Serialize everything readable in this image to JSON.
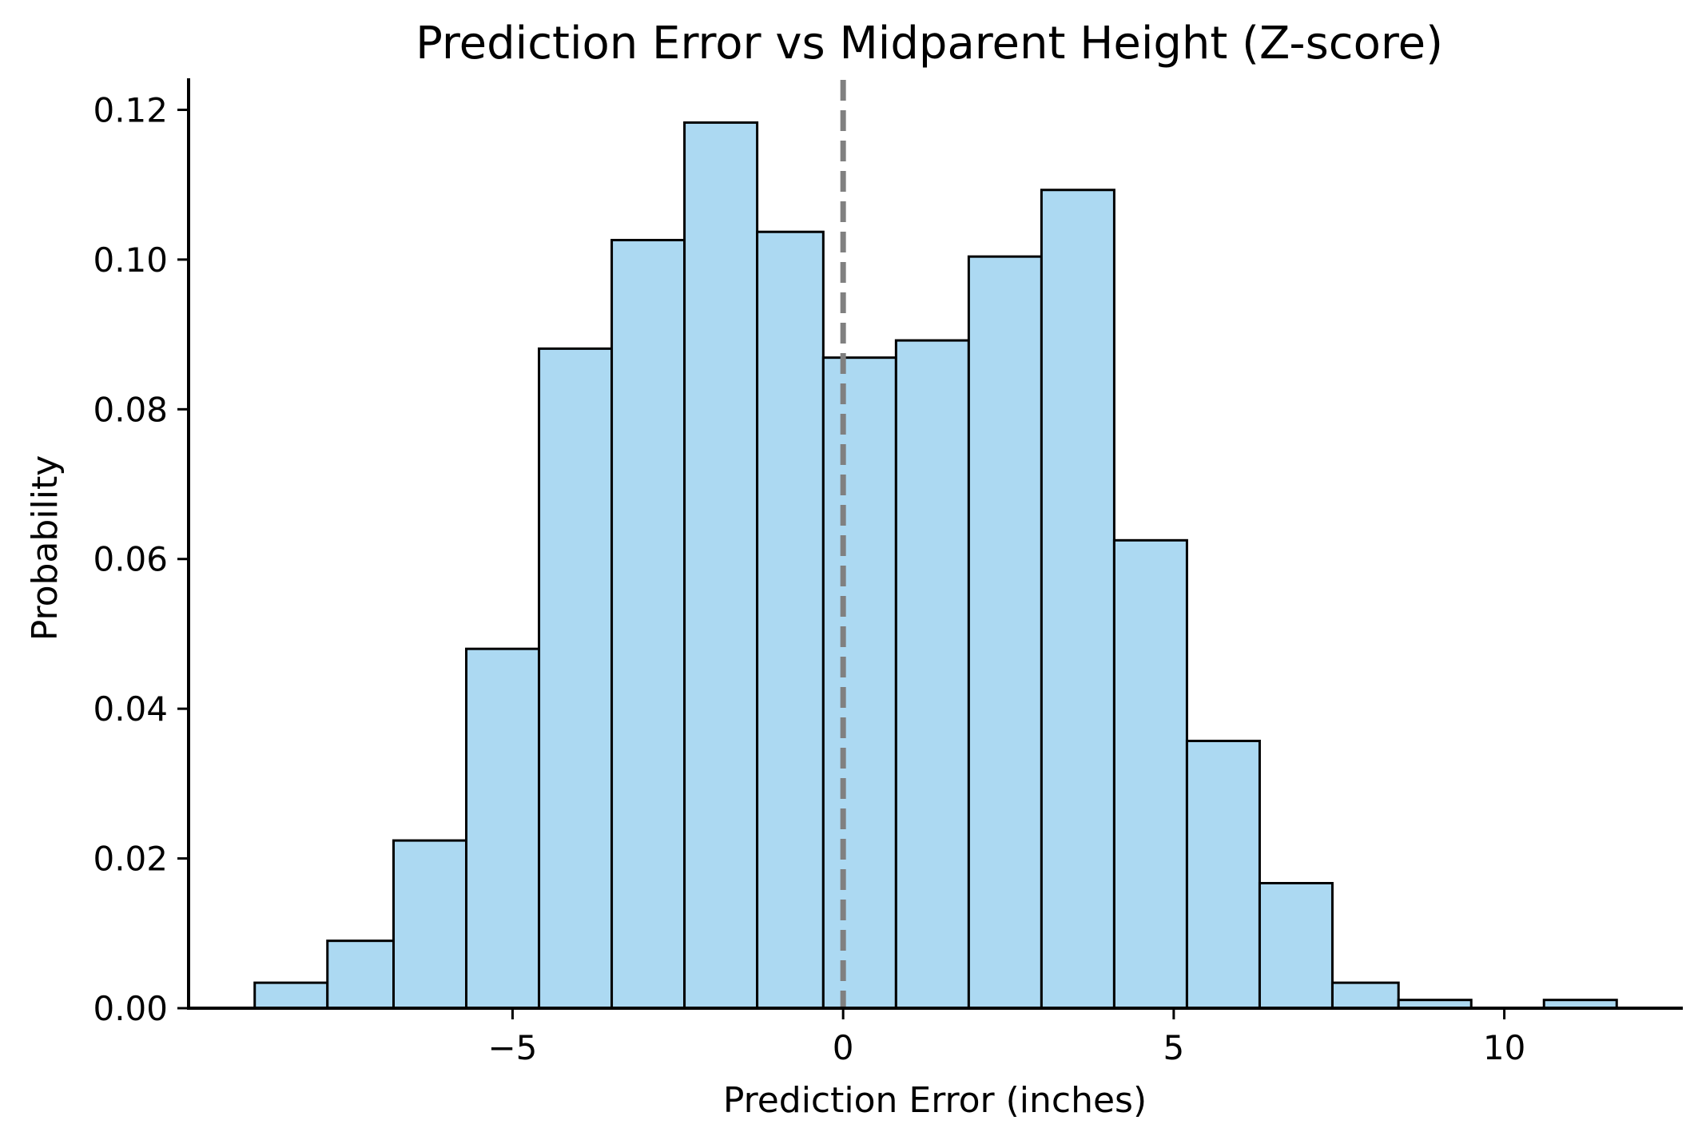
{
  "chart_data": {
    "type": "bar",
    "subtype": "histogram",
    "title": "Prediction Error vs Midparent Height (Z-score)",
    "xlabel": "Prediction Error (inches)",
    "ylabel": "Probability",
    "xlim": [
      -9.9,
      12.7
    ],
    "ylim": [
      0,
      0.124
    ],
    "x_ticks": [
      -5,
      0,
      5,
      10
    ],
    "x_tick_labels": [
      "−5",
      "0",
      "5",
      "10"
    ],
    "y_ticks": [
      0.0,
      0.02,
      0.04,
      0.06,
      0.08,
      0.1,
      0.12
    ],
    "y_tick_labels": [
      "0.00",
      "0.02",
      "0.04",
      "0.06",
      "0.08",
      "0.10",
      "0.12"
    ],
    "bins": [
      {
        "x0": -8.9,
        "x1": -7.8,
        "value": 0.0034
      },
      {
        "x0": -7.8,
        "x1": -6.8,
        "value": 0.009
      },
      {
        "x0": -6.8,
        "x1": -5.7,
        "value": 0.0224
      },
      {
        "x0": -5.7,
        "x1": -4.6,
        "value": 0.048
      },
      {
        "x0": -4.6,
        "x1": -3.5,
        "value": 0.0881
      },
      {
        "x0": -3.5,
        "x1": -2.4,
        "value": 0.1026
      },
      {
        "x0": -2.4,
        "x1": -1.3,
        "value": 0.1183
      },
      {
        "x0": -1.3,
        "x1": -0.3,
        "value": 0.1037
      },
      {
        "x0": -0.3,
        "x1": 0.8,
        "value": 0.0869
      },
      {
        "x0": 0.8,
        "x1": 1.9,
        "value": 0.0892
      },
      {
        "x0": 1.9,
        "x1": 3.0,
        "value": 0.1004
      },
      {
        "x0": 3.0,
        "x1": 4.1,
        "value": 0.1093
      },
      {
        "x0": 4.1,
        "x1": 5.2,
        "value": 0.0625
      },
      {
        "x0": 5.2,
        "x1": 6.3,
        "value": 0.0357
      },
      {
        "x0": 6.3,
        "x1": 7.4,
        "value": 0.0167
      },
      {
        "x0": 7.4,
        "x1": 8.4,
        "value": 0.0034
      },
      {
        "x0": 8.4,
        "x1": 9.5,
        "value": 0.0011
      },
      {
        "x0": 9.5,
        "x1": 10.6,
        "value": 0.0
      },
      {
        "x0": 10.6,
        "x1": 11.7,
        "value": 0.0011
      },
      {
        "x0": 11.7,
        "x1": 12.8,
        "value": 0.0
      }
    ],
    "reference_line": {
      "x": 0,
      "style": "dashed",
      "color": "#808080"
    },
    "bar_color": "#acd9f2",
    "bar_edge_color": "#000000",
    "grid": false,
    "legend": "none"
  }
}
